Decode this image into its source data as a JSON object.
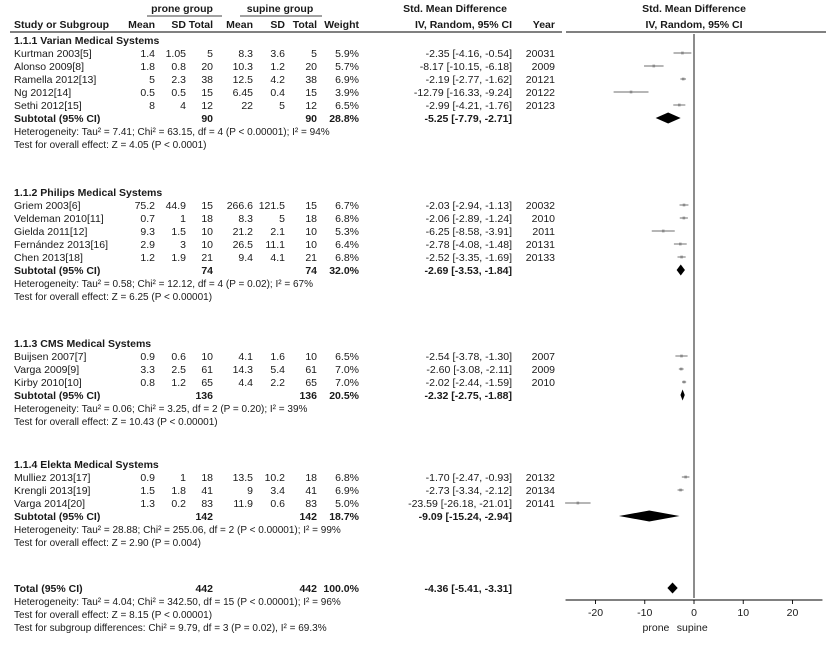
{
  "chart_data": {
    "type": "forest",
    "headers": {
      "groups": [
        "prone group",
        "supine group"
      ],
      "smd_title": "Std. Mean Difference",
      "columns": [
        "Study or Subgroup",
        "Mean",
        "SD",
        "Total",
        "Mean",
        "SD",
        "Total",
        "Weight",
        "IV, Random, 95% CI",
        "Year"
      ],
      "plot_title": "Std. Mean Difference",
      "plot_subtitle": "IV, Random, 95% CI"
    },
    "subgroups": [
      {
        "name": "1.1.1 Varian Medical Systems",
        "studies": [
          {
            "study": "Kurtman 2003[5]",
            "m1": "1.4",
            "sd1": "1.05",
            "n1": "5",
            "m2": "8.3",
            "sd2": "3.6",
            "n2": "5",
            "weight": "5.9%",
            "ci_text": "-2.35 [-4.16, -0.54]",
            "year": "20031",
            "est": -2.35,
            "lo": -4.16,
            "hi": -0.54
          },
          {
            "study": "Alonso 2009[8]",
            "m1": "1.8",
            "sd1": "0.8",
            "n1": "20",
            "m2": "10.3",
            "sd2": "1.2",
            "n2": "20",
            "weight": "5.7%",
            "ci_text": "-8.17 [-10.15, -6.18]",
            "year": "2009",
            "est": -8.17,
            "lo": -10.15,
            "hi": -6.18
          },
          {
            "study": "Ramella 2012[13]",
            "m1": "5",
            "sd1": "2.3",
            "n1": "38",
            "m2": "12.5",
            "sd2": "4.2",
            "n2": "38",
            "weight": "6.9%",
            "ci_text": "-2.19 [-2.77, -1.62]",
            "year": "20121",
            "est": -2.19,
            "lo": -2.77,
            "hi": -1.62
          },
          {
            "study": "Ng 2012[14]",
            "m1": "0.5",
            "sd1": "0.5",
            "n1": "15",
            "m2": "6.45",
            "sd2": "0.4",
            "n2": "15",
            "weight": "3.9%",
            "ci_text": "-12.79 [-16.33, -9.24]",
            "year": "20122",
            "est": -12.79,
            "lo": -16.33,
            "hi": -9.24
          },
          {
            "study": "Sethi 2012[15]",
            "m1": "8",
            "sd1": "4",
            "n1": "12",
            "m2": "22",
            "sd2": "5",
            "n2": "12",
            "weight": "6.5%",
            "ci_text": "-2.99 [-4.21, -1.76]",
            "year": "20123",
            "est": -2.99,
            "lo": -4.21,
            "hi": -1.76
          }
        ],
        "subtotal": {
          "label": "Subtotal (95% CI)",
          "n1": "90",
          "n2": "90",
          "weight": "28.8%",
          "ci_text": "-5.25 [-7.79, -2.71]",
          "est": -5.25,
          "lo": -7.79,
          "hi": -2.71
        },
        "heterogeneity": "Heterogeneity: Tau² = 7.41; Chi² = 63.15, df = 4 (P < 0.00001); I² = 94%",
        "overall_test": "Test for overall effect: Z = 4.05 (P < 0.0001)"
      },
      {
        "name": "1.1.2 Philips Medical Systems",
        "studies": [
          {
            "study": "Griem 2003[6]",
            "m1": "75.2",
            "sd1": "44.9",
            "n1": "15",
            "m2": "266.6",
            "sd2": "121.5",
            "n2": "15",
            "weight": "6.7%",
            "ci_text": "-2.03 [-2.94, -1.13]",
            "year": "20032",
            "est": -2.03,
            "lo": -2.94,
            "hi": -1.13
          },
          {
            "study": "Veldeman 2010[11]",
            "m1": "0.7",
            "sd1": "1",
            "n1": "18",
            "m2": "8.3",
            "sd2": "5",
            "n2": "18",
            "weight": "6.8%",
            "ci_text": "-2.06 [-2.89, -1.24]",
            "year": "2010",
            "est": -2.06,
            "lo": -2.89,
            "hi": -1.24
          },
          {
            "study": "Gielda 2011[12]",
            "m1": "9.3",
            "sd1": "1.5",
            "n1": "10",
            "m2": "21.2",
            "sd2": "2.1",
            "n2": "10",
            "weight": "5.3%",
            "ci_text": "-6.25 [-8.58, -3.91]",
            "year": "2011",
            "est": -6.25,
            "lo": -8.58,
            "hi": -3.91
          },
          {
            "study": "Fernández 2013[16]",
            "m1": "2.9",
            "sd1": "3",
            "n1": "10",
            "m2": "26.5",
            "sd2": "11.1",
            "n2": "10",
            "weight": "6.4%",
            "ci_text": "-2.78 [-4.08, -1.48]",
            "year": "20131",
            "est": -2.78,
            "lo": -4.08,
            "hi": -1.48
          },
          {
            "study": "Chen 2013[18]",
            "m1": "1.2",
            "sd1": "1.9",
            "n1": "21",
            "m2": "9.4",
            "sd2": "4.1",
            "n2": "21",
            "weight": "6.8%",
            "ci_text": "-2.52 [-3.35, -1.69]",
            "year": "20133",
            "est": -2.52,
            "lo": -3.35,
            "hi": -1.69
          }
        ],
        "subtotal": {
          "label": "Subtotal (95% CI)",
          "n1": "74",
          "n2": "74",
          "weight": "32.0%",
          "ci_text": "-2.69 [-3.53, -1.84]",
          "est": -2.69,
          "lo": -3.53,
          "hi": -1.84
        },
        "heterogeneity": "Heterogeneity: Tau² = 0.58; Chi² = 12.12, df = 4 (P = 0.02); I² = 67%",
        "overall_test": "Test for overall effect: Z = 6.25 (P < 0.00001)"
      },
      {
        "name": "1.1.3 CMS Medical Systems",
        "studies": [
          {
            "study": "Buijsen 2007[7]",
            "m1": "0.9",
            "sd1": "0.6",
            "n1": "10",
            "m2": "4.1",
            "sd2": "1.6",
            "n2": "10",
            "weight": "6.5%",
            "ci_text": "-2.54 [-3.78, -1.30]",
            "year": "2007",
            "est": -2.54,
            "lo": -3.78,
            "hi": -1.3
          },
          {
            "study": "Varga 2009[9]",
            "m1": "3.3",
            "sd1": "2.5",
            "n1": "61",
            "m2": "14.3",
            "sd2": "5.4",
            "n2": "61",
            "weight": "7.0%",
            "ci_text": "-2.60 [-3.08, -2.11]",
            "year": "2009",
            "est": -2.6,
            "lo": -3.08,
            "hi": -2.11
          },
          {
            "study": "Kirby 2010[10]",
            "m1": "0.8",
            "sd1": "1.2",
            "n1": "65",
            "m2": "4.4",
            "sd2": "2.2",
            "n2": "65",
            "weight": "7.0%",
            "ci_text": "-2.02 [-2.44, -1.59]",
            "year": "2010",
            "est": -2.02,
            "lo": -2.44,
            "hi": -1.59
          }
        ],
        "subtotal": {
          "label": "Subtotal (95% CI)",
          "n1": "136",
          "n2": "136",
          "weight": "20.5%",
          "ci_text": "-2.32 [-2.75, -1.88]",
          "est": -2.32,
          "lo": -2.75,
          "hi": -1.88
        },
        "heterogeneity": "Heterogeneity: Tau² = 0.06; Chi² = 3.25, df = 2 (P = 0.20); I² = 39%",
        "overall_test": "Test for overall effect: Z = 10.43 (P < 0.00001)"
      },
      {
        "name": "1.1.4 Elekta Medical Systems",
        "studies": [
          {
            "study": "Mulliez 2013[17]",
            "m1": "0.9",
            "sd1": "1",
            "n1": "18",
            "m2": "13.5",
            "sd2": "10.2",
            "n2": "18",
            "weight": "6.8%",
            "ci_text": "-1.70 [-2.47, -0.93]",
            "year": "20132",
            "est": -1.7,
            "lo": -2.47,
            "hi": -0.93
          },
          {
            "study": "Krengli 2013[19]",
            "m1": "1.5",
            "sd1": "1.8",
            "n1": "41",
            "m2": "9",
            "sd2": "3.4",
            "n2": "41",
            "weight": "6.9%",
            "ci_text": "-2.73 [-3.34, -2.12]",
            "year": "20134",
            "est": -2.73,
            "lo": -3.34,
            "hi": -2.12
          },
          {
            "study": "Varga 2014[20]",
            "m1": "1.3",
            "sd1": "0.2",
            "n1": "83",
            "m2": "11.9",
            "sd2": "0.6",
            "n2": "83",
            "weight": "5.0%",
            "ci_text": "-23.59 [-26.18, -21.01]",
            "year": "20141",
            "est": -23.59,
            "lo": -26.18,
            "hi": -21.01
          }
        ],
        "subtotal": {
          "label": "Subtotal (95% CI)",
          "n1": "142",
          "n2": "142",
          "weight": "18.7%",
          "ci_text": "-9.09 [-15.24, -2.94]",
          "est": -9.09,
          "lo": -15.24,
          "hi": -2.94
        },
        "heterogeneity": "Heterogeneity: Tau² = 28.88; Chi² = 255.06, df = 2 (P < 0.00001); I² = 99%",
        "overall_test": "Test for overall effect: Z = 2.90 (P = 0.004)"
      }
    ],
    "total": {
      "label": "Total (95% CI)",
      "n1": "442",
      "n2": "442",
      "weight": "100.0%",
      "ci_text": "-4.36 [-5.41, -3.31]",
      "est": -4.36,
      "lo": -5.41,
      "hi": -3.31
    },
    "footer": [
      "Heterogeneity: Tau² = 4.04; Chi² = 342.50, df = 15 (P < 0.00001); I² = 96%",
      "Test for overall effect: Z = 8.15 (P < 0.00001)",
      "Test for subgroup differences: Chi² = 9.79, df = 3 (P = 0.02), I² = 69.3%"
    ],
    "x_axis": {
      "xlim": [
        -26,
        26
      ],
      "ticks": [
        -20,
        -10,
        0,
        10,
        20
      ],
      "tick_labels": [
        "-20",
        "-10",
        "0",
        "10",
        "20"
      ],
      "left_label": "prone",
      "right_label": "supine"
    },
    "colors": {
      "ci_line": "#8a8a8a",
      "diamond": "#000000",
      "text": "#1a1a1a",
      "rule": "#666666"
    }
  }
}
